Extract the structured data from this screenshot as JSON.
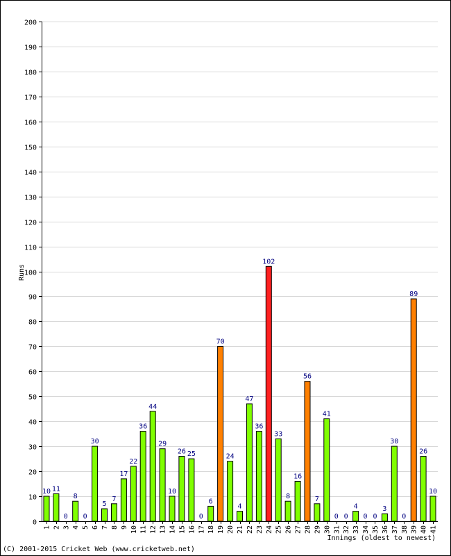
{
  "copyright": "(C) 2001-2015 Cricket Web (www.cricketweb.net)",
  "colors": {
    "normal": "#80ff00",
    "fifty": "#ff8000",
    "hundred": "#ff2020",
    "label": "#000080",
    "grid": "#d8d8d8"
  },
  "chart_data": {
    "type": "bar",
    "ylabel": "Runs",
    "xlabel": "Innings (oldest to newest)",
    "ylim": [
      0,
      200
    ],
    "ytick_step": 10,
    "grid": true,
    "categories": [
      "1",
      "2",
      "3",
      "4",
      "5",
      "6",
      "7",
      "8",
      "9",
      "10",
      "11",
      "12",
      "13",
      "14",
      "15",
      "16",
      "17",
      "18",
      "19",
      "20",
      "21",
      "22",
      "23",
      "24",
      "25",
      "26",
      "27",
      "28",
      "29",
      "30",
      "31",
      "32",
      "33",
      "34",
      "35",
      "36",
      "37",
      "38",
      "39",
      "40",
      "41"
    ],
    "values": [
      10,
      11,
      0,
      8,
      0,
      30,
      5,
      7,
      17,
      22,
      36,
      44,
      29,
      10,
      26,
      25,
      0,
      6,
      70,
      24,
      4,
      47,
      36,
      102,
      33,
      8,
      16,
      56,
      7,
      41,
      0,
      0,
      4,
      0,
      0,
      3,
      30,
      0,
      89,
      26,
      10
    ]
  }
}
